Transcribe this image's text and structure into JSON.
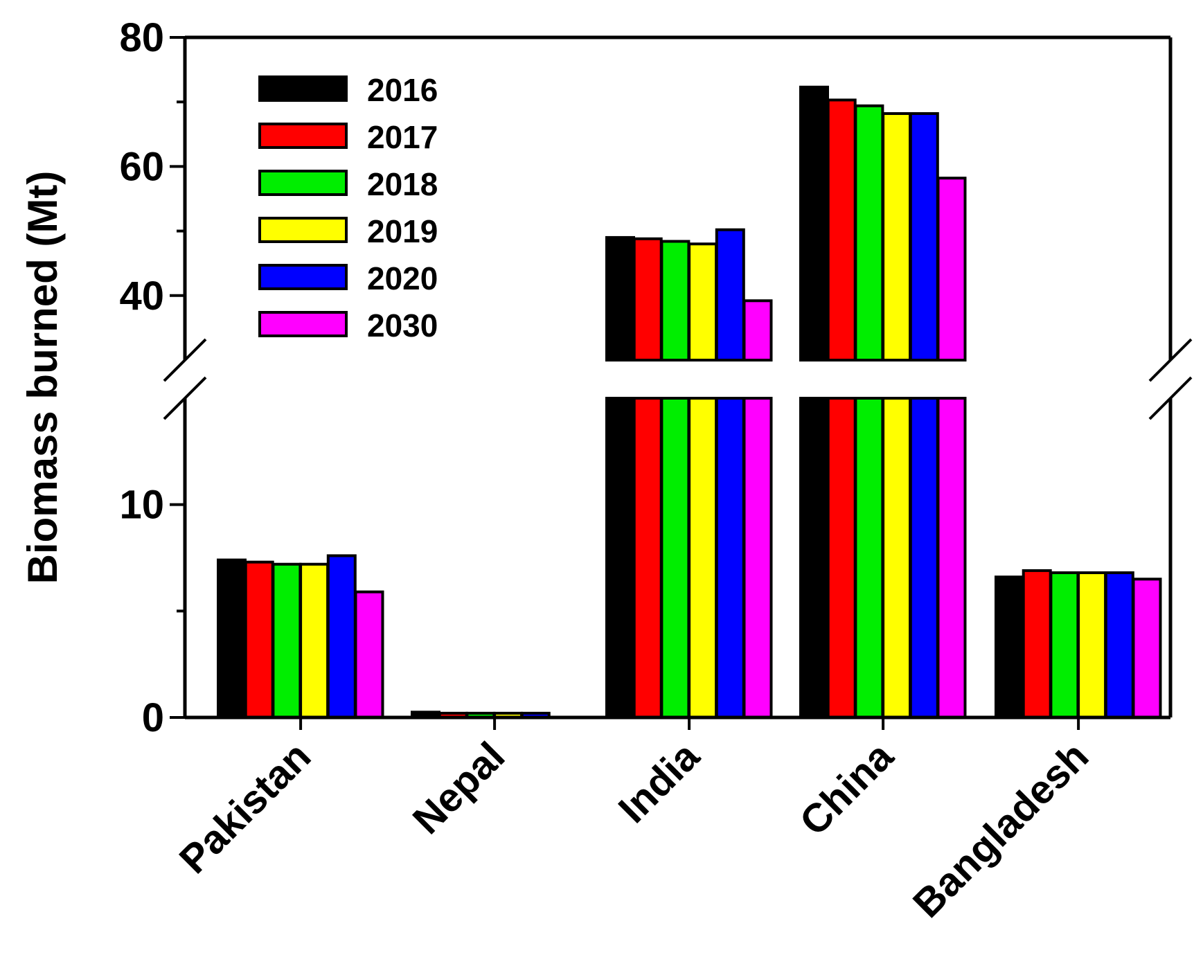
{
  "chart_data": {
    "type": "bar",
    "title": "",
    "xlabel": "",
    "ylabel": "Biomass burned (Mt)",
    "categories": [
      "Pakistan",
      "Nepal",
      "India",
      "China",
      "Bangladesh"
    ],
    "series": [
      {
        "name": "2016",
        "color": "#000000",
        "values": [
          7.4,
          0.25,
          49.0,
          72.3,
          6.6
        ]
      },
      {
        "name": "2017",
        "color": "#ff0000",
        "values": [
          7.3,
          0.2,
          48.8,
          70.3,
          6.9
        ]
      },
      {
        "name": "2018",
        "color": "#00ee00",
        "values": [
          7.2,
          0.2,
          48.4,
          69.4,
          6.8
        ]
      },
      {
        "name": "2019",
        "color": "#ffff00",
        "values": [
          7.2,
          0.2,
          48.0,
          68.2,
          6.8
        ]
      },
      {
        "name": "2020",
        "color": "#0000ff",
        "values": [
          7.6,
          0.2,
          50.2,
          68.2,
          6.8
        ]
      },
      {
        "name": "2030",
        "color": "#ff00ff",
        "values": [
          5.9,
          0.0,
          39.2,
          58.2,
          6.5
        ]
      }
    ],
    "y_axis": {
      "broken": true,
      "lower_segment": {
        "range": [
          0,
          15
        ],
        "ticks": [
          0,
          10
        ],
        "minor_ticks": [
          5
        ]
      },
      "upper_segment": {
        "range": [
          30,
          80
        ],
        "ticks": [
          40,
          60,
          80
        ],
        "minor_ticks": [
          50,
          70
        ]
      }
    },
    "legend": {
      "position": "top-left",
      "entries": [
        "2016",
        "2017",
        "2018",
        "2019",
        "2020",
        "2030"
      ]
    },
    "grid": false
  }
}
